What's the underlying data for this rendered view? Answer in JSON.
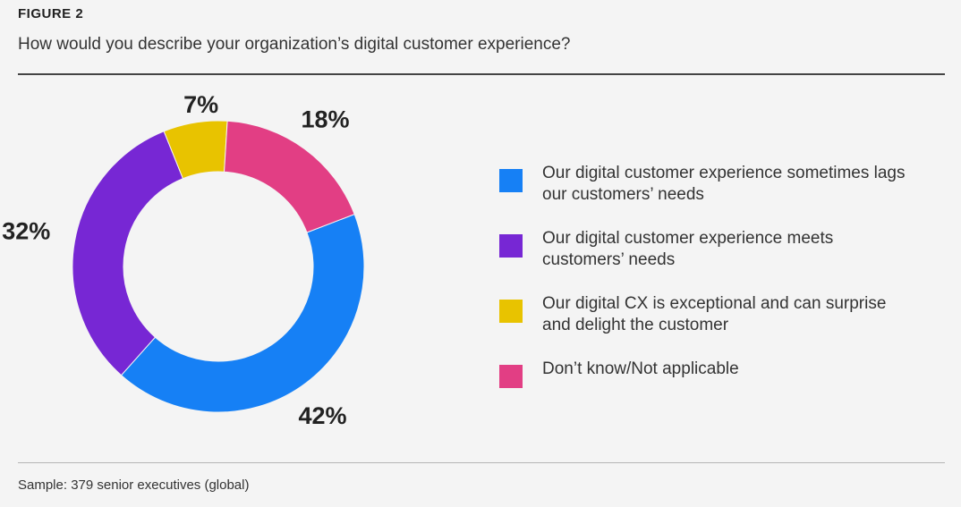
{
  "figure_label": "FIGURE 2",
  "question": "How would you describe your organization’s digital customer experience?",
  "sample_note": "Sample: 379 senior executives (global)",
  "chart_data": {
    "type": "pie",
    "donut": true,
    "title": "How would you describe your organization’s digital customer experience?",
    "categories": [
      "Our digital customer experience sometimes lags our customers’ needs",
      "Our digital customer experience meets customers’ needs",
      "Our digital CX is exceptional and can surprise and delight the customer",
      "Don’t know/Not applicable"
    ],
    "values": [
      42,
      32,
      7,
      18
    ],
    "value_labels": [
      "42%",
      "32%",
      "7%",
      "18%"
    ],
    "colors": [
      "#1680f5",
      "#7727d4",
      "#e8c300",
      "#e23e84"
    ],
    "legend_position": "right"
  },
  "legend": [
    {
      "label": "Our digital customer experience sometimes lags our customers’ needs",
      "color": "#1680f5"
    },
    {
      "label": "Our digital customer experience meets customers’ needs",
      "color": "#7727d4"
    },
    {
      "label": "Our digital CX is exceptional and can surprise and delight the customer",
      "color": "#e8c300"
    },
    {
      "label": "Don’t know/Not applicable",
      "color": "#e23e84"
    }
  ]
}
